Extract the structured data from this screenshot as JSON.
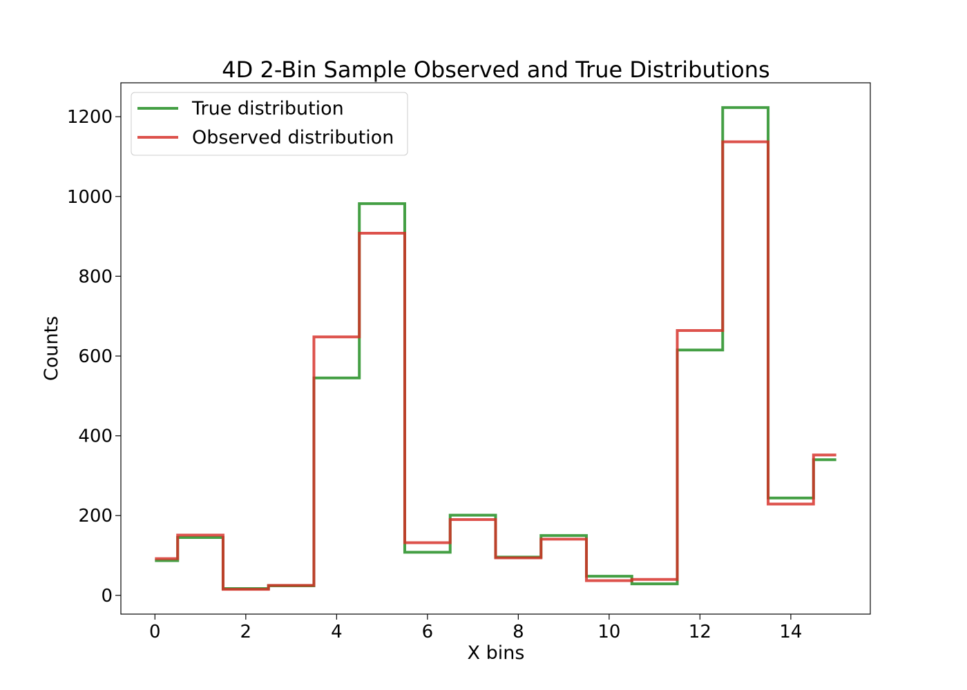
{
  "chart_data": {
    "type": "line",
    "title": "4D 2-Bin Sample Observed and True Distributions",
    "xlabel": "X bins",
    "ylabel": "Counts",
    "xlim": [
      -0.75,
      15.75
    ],
    "ylim": [
      -47,
      1285
    ],
    "xticks": [
      0,
      2,
      4,
      6,
      8,
      10,
      12,
      14
    ],
    "yticks": [
      0,
      200,
      400,
      600,
      800,
      1000,
      1200
    ],
    "grid": false,
    "legend_position": "top-left",
    "x": [
      0,
      1,
      2,
      3,
      4,
      5,
      6,
      7,
      8,
      9,
      10,
      11,
      12,
      13,
      14,
      15
    ],
    "series": [
      {
        "name": "True distribution",
        "color": "#3a9a3a",
        "values": [
          87,
          145,
          17,
          24,
          545,
          982,
          108,
          201,
          96,
          150,
          48,
          29,
          615,
          1223,
          244,
          340
        ]
      },
      {
        "name": "Observed distribution",
        "color": "#d62c24",
        "values": [
          92,
          151,
          15,
          25,
          648,
          908,
          132,
          190,
          94,
          141,
          37,
          40,
          664,
          1137,
          229,
          352
        ]
      }
    ]
  }
}
